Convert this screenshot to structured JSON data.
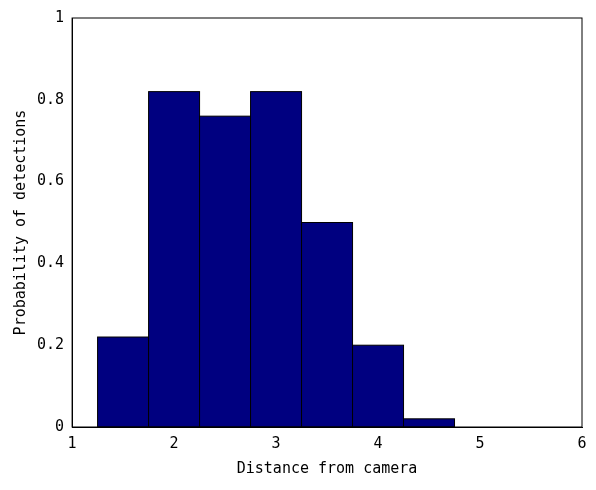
{
  "chart_data": {
    "type": "histogram",
    "x_label": "Distance from camera",
    "y_label": "Probability of detections",
    "bins": [
      1.25,
      1.75,
      2.25,
      2.75,
      3.25,
      3.75,
      4.25,
      4.75
    ],
    "values": [
      0.22,
      0.82,
      0.76,
      0.82,
      0.5,
      0.2,
      0.02
    ],
    "color": "#000080",
    "xlim": [
      1,
      6
    ],
    "xticks": [
      1,
      2,
      3,
      4,
      5,
      6
    ],
    "ylim": [
      0,
      1
    ],
    "yticks": [
      0,
      0.2,
      0.4,
      0.6,
      0.8,
      1
    ],
    "grid": false
  }
}
